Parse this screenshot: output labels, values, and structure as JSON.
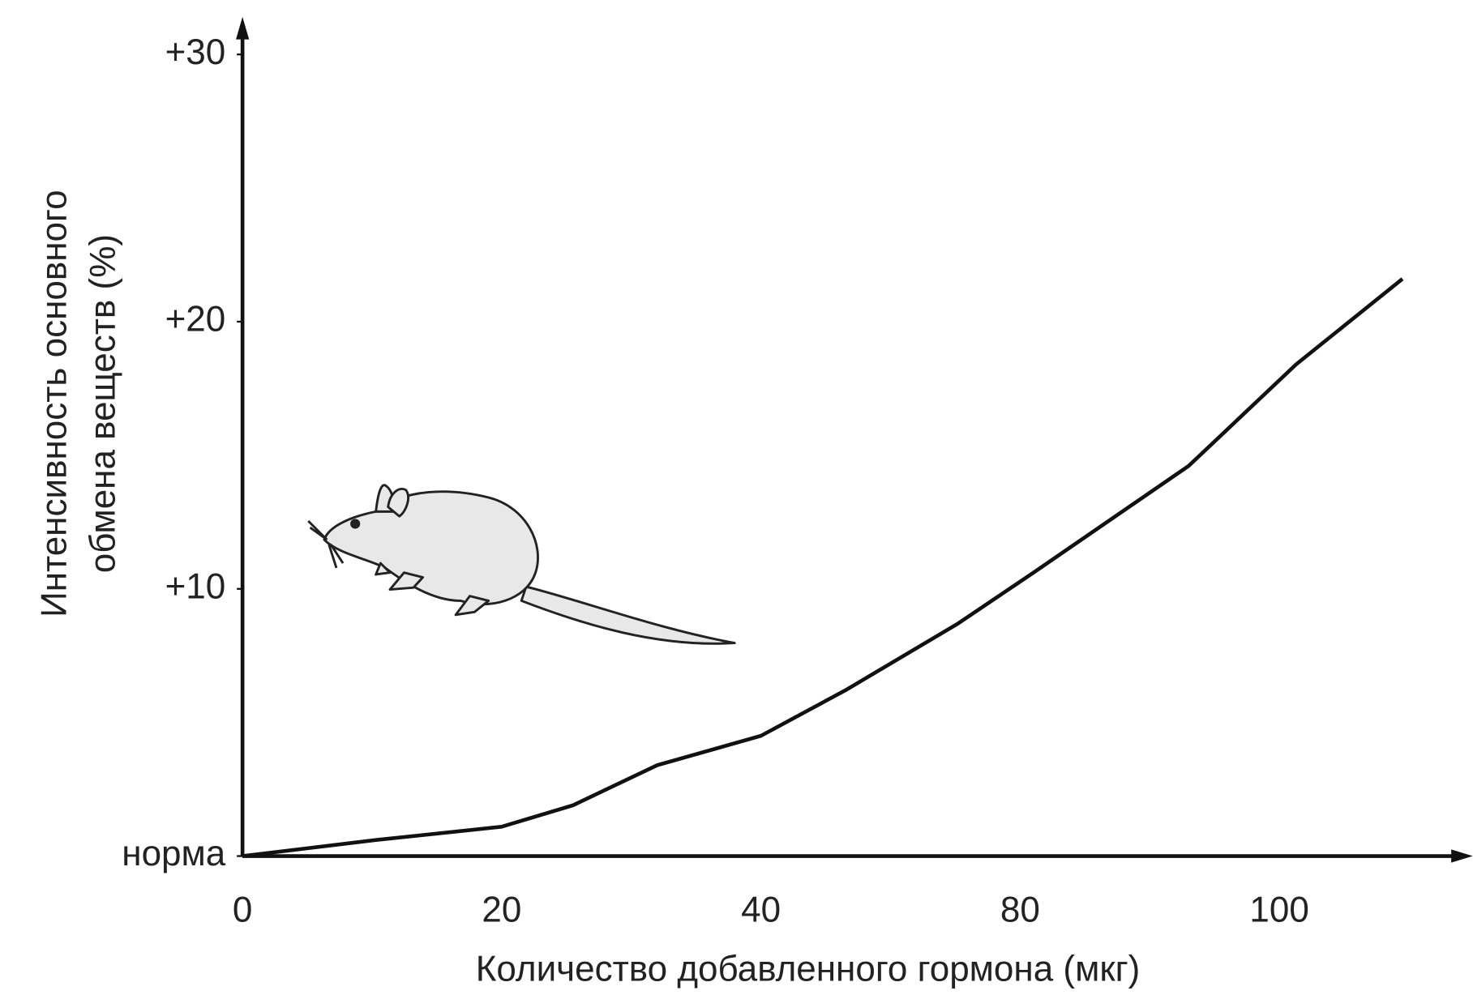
{
  "chart_data": {
    "type": "line",
    "xlabel": "Количество добавленного гормона (мкг)",
    "ylabel": [
      "Интенсивность основного",
      "обмена веществ (%)"
    ],
    "x": [
      0,
      10.3,
      20,
      25.5,
      32,
      40,
      53,
      70.4,
      81,
      93,
      101.3,
      109.5
    ],
    "series": [
      {
        "color": "#111111",
        "values": [
          0,
          0.6,
          1.1,
          1.9,
          3.4,
          4.5,
          6.2,
          8.7,
          10.6,
          14.6,
          18.4,
          21.6
        ]
      }
    ],
    "xlim": [
      0,
      115
    ],
    "xticks": [
      0,
      20,
      40,
      80,
      100
    ],
    "ylim": [
      0,
      30
    ],
    "yticks": [
      {
        "value": 0,
        "label": "норма"
      },
      {
        "value": 10,
        "label": "+10"
      },
      {
        "value": 20,
        "label": "+20"
      },
      {
        "value": 30,
        "label": "+30"
      }
    ],
    "grid": false
  }
}
